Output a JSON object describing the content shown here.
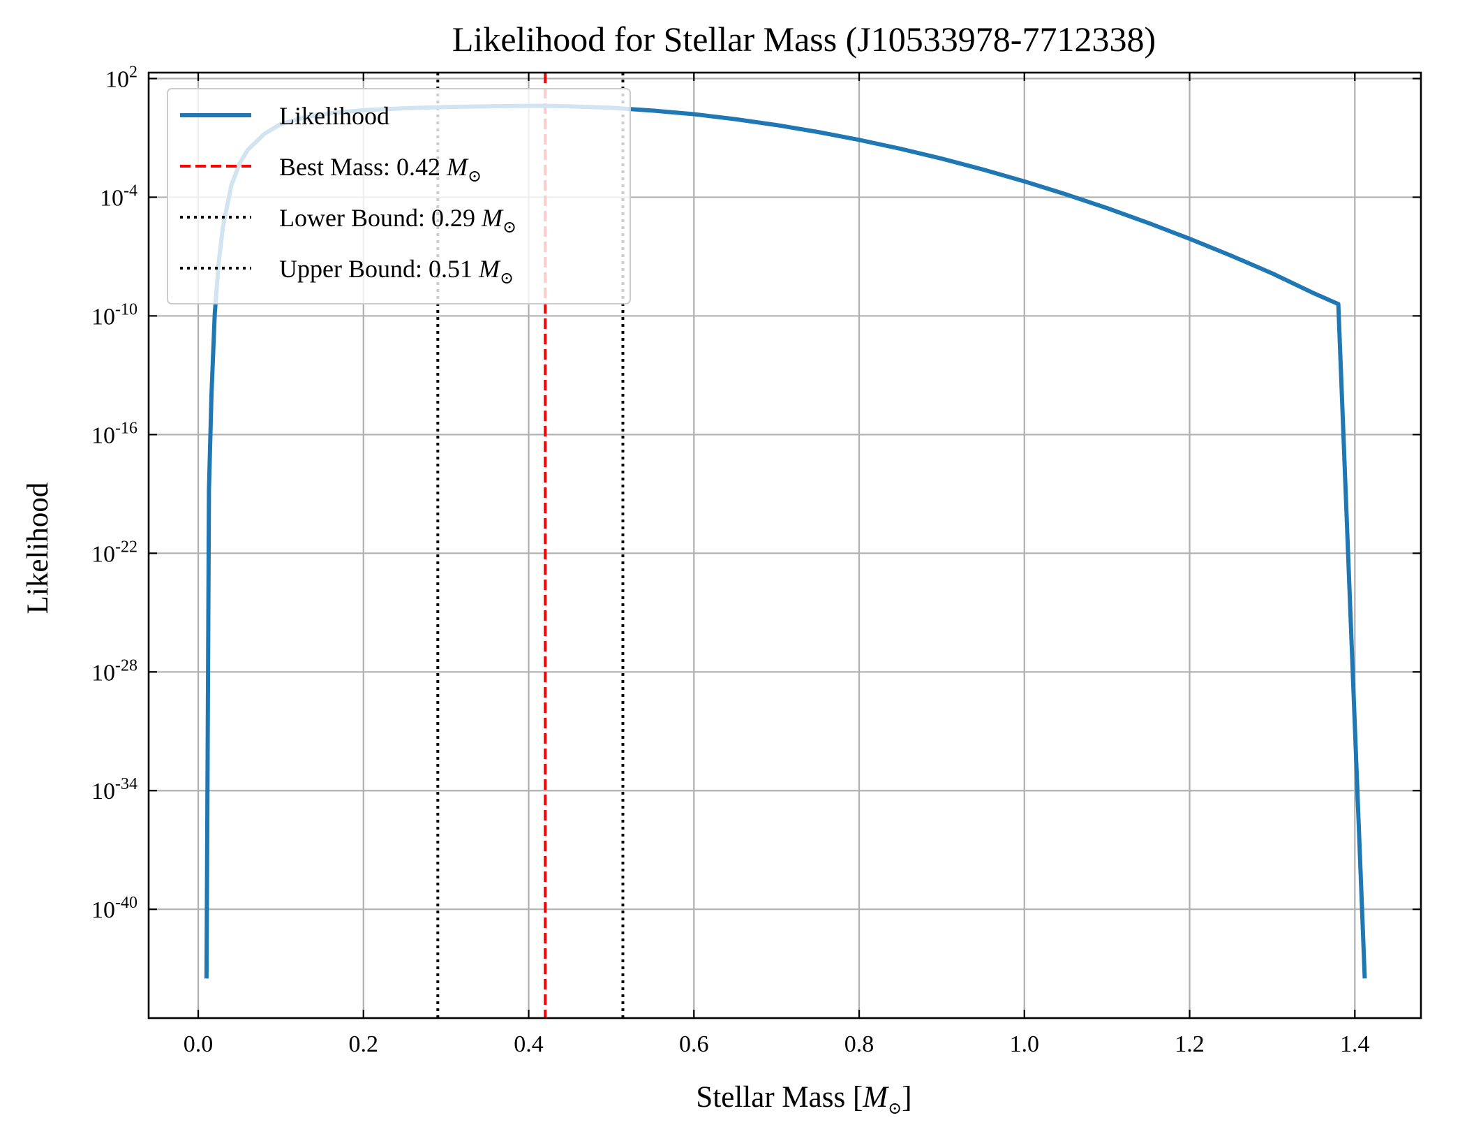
{
  "chart_data": {
    "type": "line",
    "title": "Likelihood for Stellar Mass (J10533978-7712338)",
    "xlabel": "Stellar Mass",
    "xlabel_unit": "M",
    "xlabel_unit_sub": "⊙",
    "ylabel": "Likelihood",
    "yscale": "log",
    "xlim": [
      -0.06,
      1.48
    ],
    "ylim_log10": [
      -45.5,
      2.3
    ],
    "grid": true,
    "legend_position": "upper-left",
    "x_ticks": [
      {
        "value": 0.0,
        "label": "0.0"
      },
      {
        "value": 0.2,
        "label": "0.2"
      },
      {
        "value": 0.4,
        "label": "0.4"
      },
      {
        "value": 0.6,
        "label": "0.6"
      },
      {
        "value": 0.8,
        "label": "0.8"
      },
      {
        "value": 1.0,
        "label": "1.0"
      },
      {
        "value": 1.2,
        "label": "1.2"
      },
      {
        "value": 1.4,
        "label": "1.4"
      }
    ],
    "y_ticks": [
      {
        "log10": 2,
        "base": "10",
        "exp": "2"
      },
      {
        "log10": -4,
        "base": "10",
        "exp": "-4"
      },
      {
        "log10": -10,
        "base": "10",
        "exp": "-10"
      },
      {
        "log10": -16,
        "base": "10",
        "exp": "-16"
      },
      {
        "log10": -22,
        "base": "10",
        "exp": "-22"
      },
      {
        "log10": -28,
        "base": "10",
        "exp": "-28"
      },
      {
        "log10": -34,
        "base": "10",
        "exp": "-34"
      },
      {
        "log10": -40,
        "base": "10",
        "exp": "-40"
      }
    ],
    "series": [
      {
        "name": "Likelihood",
        "color": "#1f77b4",
        "style": "solid",
        "x": [
          0.01,
          0.013,
          0.016,
          0.02,
          0.025,
          0.03,
          0.04,
          0.05,
          0.06,
          0.08,
          0.1,
          0.13,
          0.16,
          0.2,
          0.25,
          0.3,
          0.35,
          0.4,
          0.42,
          0.45,
          0.5,
          0.55,
          0.6,
          0.65,
          0.7,
          0.75,
          0.8,
          0.85,
          0.9,
          0.95,
          1.0,
          1.05,
          1.1,
          1.15,
          1.2,
          1.25,
          1.3,
          1.35,
          1.38,
          1.412
        ],
        "log10_y": [
          -43.5,
          -18.8,
          -14.0,
          -9.9,
          -7.2,
          -5.5,
          -3.4,
          -2.3,
          -1.6,
          -0.8,
          -0.3,
          0.05,
          0.25,
          0.4,
          0.5,
          0.56,
          0.6,
          0.62,
          0.62,
          0.6,
          0.52,
          0.38,
          0.2,
          -0.05,
          -0.35,
          -0.7,
          -1.1,
          -1.55,
          -2.05,
          -2.6,
          -3.2,
          -3.85,
          -4.55,
          -5.3,
          -6.1,
          -6.95,
          -7.85,
          -8.85,
          -9.4,
          -43.5
        ]
      }
    ],
    "vlines": [
      {
        "label": "Best Mass: 0.42",
        "unit": "M",
        "unit_sub": "⊙",
        "x": 0.42,
        "color": "#ff0000",
        "style": "dashed"
      },
      {
        "label": "Lower Bound: 0.29",
        "unit": "M",
        "unit_sub": "⊙",
        "x": 0.29,
        "color": "#000000",
        "style": "dotted"
      },
      {
        "label": "Upper Bound: 0.51",
        "unit": "M",
        "unit_sub": "⊙",
        "x": 0.514,
        "color": "#000000",
        "style": "dotted"
      }
    ]
  }
}
